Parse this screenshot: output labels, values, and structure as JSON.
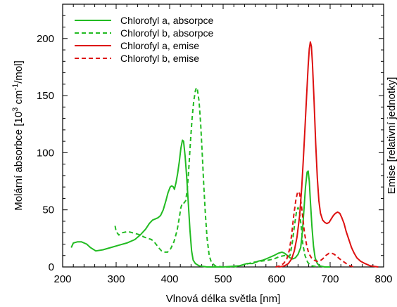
{
  "chart_data": {
    "type": "line",
    "xlabel": "Vlnová délka světla [nm]",
    "ylabel": {
      "pre": "Molární absorbce [10",
      "sup1": "3",
      "mid": " cm",
      "sup2": "-1",
      "post": "/mol]"
    },
    "y2label": "Emise [relativní jednotky]",
    "xlim": [
      200,
      800
    ],
    "ylim": [
      0,
      230
    ],
    "x_ticks": [
      200,
      300,
      400,
      500,
      600,
      700,
      800
    ],
    "y_ticks": [
      0,
      50,
      100,
      150,
      200
    ],
    "grid": false,
    "legend_position": "top-left",
    "series": [
      {
        "name": "Chlorofyl a, absorpce",
        "color": "#22bb22",
        "style": "solid",
        "points": [
          [
            216,
            17
          ],
          [
            220,
            21
          ],
          [
            228,
            22
          ],
          [
            235,
            22
          ],
          [
            245,
            20
          ],
          [
            252,
            17
          ],
          [
            262,
            14
          ],
          [
            275,
            15
          ],
          [
            290,
            17
          ],
          [
            305,
            19
          ],
          [
            320,
            21
          ],
          [
            335,
            24
          ],
          [
            345,
            28
          ],
          [
            355,
            33
          ],
          [
            362,
            38
          ],
          [
            368,
            41
          ],
          [
            373,
            42
          ],
          [
            378,
            43
          ],
          [
            383,
            45
          ],
          [
            388,
            50
          ],
          [
            393,
            58
          ],
          [
            397,
            65
          ],
          [
            401,
            70
          ],
          [
            404,
            71
          ],
          [
            407,
            70
          ],
          [
            409,
            68
          ],
          [
            412,
            74
          ],
          [
            415,
            82
          ],
          [
            418,
            92
          ],
          [
            421,
            104
          ],
          [
            424,
            111
          ],
          [
            426,
            110
          ],
          [
            429,
            97
          ],
          [
            432,
            78
          ],
          [
            435,
            55
          ],
          [
            438,
            32
          ],
          [
            441,
            14
          ],
          [
            444,
            6
          ],
          [
            448,
            3
          ],
          [
            455,
            1
          ],
          [
            470,
            0
          ],
          [
            500,
            0
          ],
          [
            530,
            1
          ],
          [
            545,
            3
          ],
          [
            555,
            3
          ],
          [
            565,
            5
          ],
          [
            575,
            6
          ],
          [
            585,
            8
          ],
          [
            595,
            10
          ],
          [
            603,
            12
          ],
          [
            610,
            13
          ],
          [
            615,
            12
          ],
          [
            620,
            10
          ],
          [
            625,
            8
          ],
          [
            630,
            7
          ],
          [
            635,
            8
          ],
          [
            640,
            11
          ],
          [
            645,
            17
          ],
          [
            648,
            30
          ],
          [
            651,
            50
          ],
          [
            654,
            70
          ],
          [
            657,
            83
          ],
          [
            659,
            84
          ],
          [
            661,
            75
          ],
          [
            663,
            58
          ],
          [
            666,
            35
          ],
          [
            669,
            18
          ],
          [
            672,
            8
          ],
          [
            676,
            3
          ],
          [
            680,
            1
          ],
          [
            690,
            0
          ],
          [
            700,
            0
          ]
        ]
      },
      {
        "name": "Chlorofyl b, absorpce",
        "color": "#22bb22",
        "style": "dashed",
        "points": [
          [
            298,
            36
          ],
          [
            300,
            31
          ],
          [
            305,
            28
          ],
          [
            312,
            30
          ],
          [
            322,
            31
          ],
          [
            330,
            30
          ],
          [
            338,
            29
          ],
          [
            345,
            28
          ],
          [
            353,
            26
          ],
          [
            360,
            25
          ],
          [
            366,
            24
          ],
          [
            371,
            22
          ],
          [
            376,
            19
          ],
          [
            381,
            16
          ],
          [
            385,
            14
          ],
          [
            390,
            13
          ],
          [
            396,
            13
          ],
          [
            402,
            16
          ],
          [
            408,
            22
          ],
          [
            414,
            32
          ],
          [
            418,
            43
          ],
          [
            421,
            52
          ],
          [
            424,
            56
          ],
          [
            427,
            56
          ],
          [
            430,
            58
          ],
          [
            433,
            68
          ],
          [
            436,
            88
          ],
          [
            439,
            110
          ],
          [
            442,
            130
          ],
          [
            445,
            145
          ],
          [
            448,
            154
          ],
          [
            450,
            157
          ],
          [
            452,
            155
          ],
          [
            455,
            145
          ],
          [
            458,
            125
          ],
          [
            461,
            98
          ],
          [
            464,
            70
          ],
          [
            467,
            45
          ],
          [
            470,
            25
          ],
          [
            474,
            10
          ],
          [
            478,
            4
          ],
          [
            485,
            1
          ],
          [
            500,
            0
          ],
          [
            520,
            0
          ],
          [
            540,
            2
          ],
          [
            555,
            4
          ],
          [
            570,
            5
          ],
          [
            585,
            6
          ],
          [
            595,
            7
          ],
          [
            605,
            9
          ],
          [
            615,
            10
          ],
          [
            621,
            9
          ],
          [
            625,
            10
          ],
          [
            629,
            20
          ],
          [
            633,
            35
          ],
          [
            637,
            48
          ],
          [
            640,
            52
          ],
          [
            643,
            47
          ],
          [
            646,
            35
          ],
          [
            649,
            20
          ],
          [
            653,
            10
          ],
          [
            658,
            4
          ],
          [
            665,
            1
          ],
          [
            680,
            0
          ]
        ]
      },
      {
        "name": "Chlorofyl a, emise",
        "color": "#dd1111",
        "style": "solid",
        "points": [
          [
            605,
            0
          ],
          [
            615,
            1
          ],
          [
            622,
            3
          ],
          [
            628,
            7
          ],
          [
            633,
            14
          ],
          [
            638,
            26
          ],
          [
            643,
            45
          ],
          [
            647,
            70
          ],
          [
            650,
            95
          ],
          [
            653,
            122
          ],
          [
            656,
            150
          ],
          [
            659,
            176
          ],
          [
            661,
            191
          ],
          [
            663,
            197
          ],
          [
            665,
            193
          ],
          [
            667,
            178
          ],
          [
            670,
            145
          ],
          [
            673,
            108
          ],
          [
            676,
            78
          ],
          [
            679,
            58
          ],
          [
            682,
            47
          ],
          [
            686,
            41
          ],
          [
            690,
            39
          ],
          [
            694,
            38
          ],
          [
            698,
            39
          ],
          [
            702,
            42
          ],
          [
            706,
            45
          ],
          [
            710,
            47
          ],
          [
            714,
            48
          ],
          [
            718,
            47
          ],
          [
            722,
            43
          ],
          [
            726,
            38
          ],
          [
            730,
            31
          ],
          [
            735,
            24
          ],
          [
            740,
            17
          ],
          [
            745,
            12
          ],
          [
            750,
            8
          ],
          [
            757,
            5
          ],
          [
            765,
            3
          ],
          [
            775,
            1
          ],
          [
            790,
            0
          ]
        ]
      },
      {
        "name": "Chlorofyl b, emise",
        "color": "#dd1111",
        "style": "dashed",
        "points": [
          [
            598,
            0
          ],
          [
            606,
            1
          ],
          [
            613,
            3
          ],
          [
            619,
            7
          ],
          [
            624,
            15
          ],
          [
            628,
            28
          ],
          [
            632,
            45
          ],
          [
            636,
            59
          ],
          [
            639,
            65
          ],
          [
            641,
            66
          ],
          [
            643,
            64
          ],
          [
            646,
            55
          ],
          [
            649,
            43
          ],
          [
            652,
            30
          ],
          [
            656,
            19
          ],
          [
            660,
            12
          ],
          [
            665,
            8
          ],
          [
            670,
            6
          ],
          [
            675,
            5
          ],
          [
            680,
            5
          ],
          [
            686,
            7
          ],
          [
            692,
            10
          ],
          [
            698,
            12
          ],
          [
            703,
            12
          ],
          [
            708,
            11
          ],
          [
            713,
            9
          ],
          [
            718,
            7
          ],
          [
            724,
            5
          ],
          [
            730,
            3
          ],
          [
            737,
            1
          ],
          [
            745,
            0
          ]
        ]
      }
    ]
  }
}
